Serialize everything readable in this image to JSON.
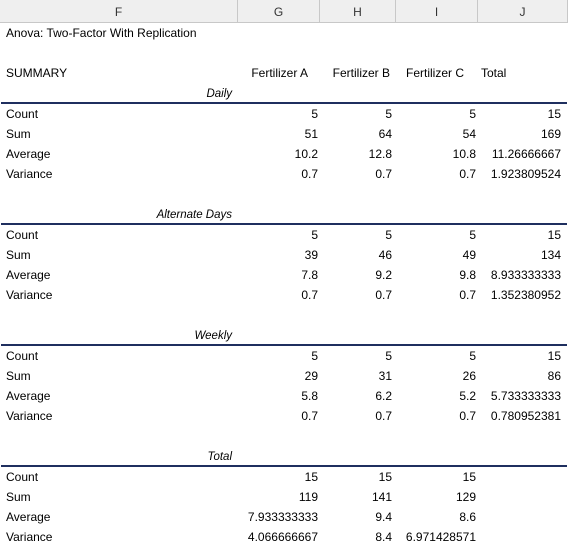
{
  "columns": [
    "F",
    "G",
    "H",
    "I",
    "J"
  ],
  "title": "Anova: Two-Factor With Replication",
  "summary_label": "SUMMARY",
  "headers": [
    "Fertilizer A",
    "Fertilizer B",
    "Fertilizer C",
    "Total"
  ],
  "groups": [
    {
      "name": "Daily",
      "rows": [
        {
          "label": "Count",
          "a": "5",
          "b": "5",
          "c": "5",
          "total": "15"
        },
        {
          "label": "Sum",
          "a": "51",
          "b": "64",
          "c": "54",
          "total": "169"
        },
        {
          "label": "Average",
          "a": "10.2",
          "b": "12.8",
          "c": "10.8",
          "total": "11.26666667"
        },
        {
          "label": "Variance",
          "a": "0.7",
          "b": "0.7",
          "c": "0.7",
          "total": "1.923809524"
        }
      ]
    },
    {
      "name": "Alternate Days",
      "rows": [
        {
          "label": "Count",
          "a": "5",
          "b": "5",
          "c": "5",
          "total": "15"
        },
        {
          "label": "Sum",
          "a": "39",
          "b": "46",
          "c": "49",
          "total": "134"
        },
        {
          "label": "Average",
          "a": "7.8",
          "b": "9.2",
          "c": "9.8",
          "total": "8.933333333"
        },
        {
          "label": "Variance",
          "a": "0.7",
          "b": "0.7",
          "c": "0.7",
          "total": "1.352380952"
        }
      ]
    },
    {
      "name": "Weekly",
      "rows": [
        {
          "label": "Count",
          "a": "5",
          "b": "5",
          "c": "5",
          "total": "15"
        },
        {
          "label": "Sum",
          "a": "29",
          "b": "31",
          "c": "26",
          "total": "86"
        },
        {
          "label": "Average",
          "a": "5.8",
          "b": "6.2",
          "c": "5.2",
          "total": "5.733333333"
        },
        {
          "label": "Variance",
          "a": "0.7",
          "b": "0.7",
          "c": "0.7",
          "total": "0.780952381"
        }
      ]
    },
    {
      "name": "Total",
      "rows": [
        {
          "label": "Count",
          "a": "15",
          "b": "15",
          "c": "15",
          "total": ""
        },
        {
          "label": "Sum",
          "a": "119",
          "b": "141",
          "c": "129",
          "total": ""
        },
        {
          "label": "Average",
          "a": "7.933333333",
          "b": "9.4",
          "c": "8.6",
          "total": ""
        },
        {
          "label": "Variance",
          "a": "4.066666667",
          "b": "8.4",
          "c": "6.971428571",
          "total": ""
        }
      ]
    }
  ]
}
